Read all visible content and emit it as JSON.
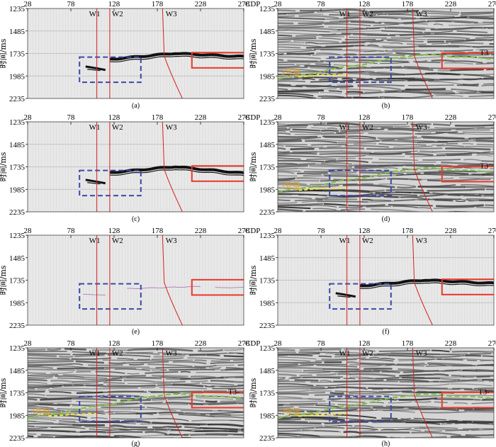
{
  "figure": {
    "x_axis_label": "CDP",
    "y_axis_label": "时间/ms",
    "x_ticks": [
      "28",
      "78",
      "128",
      "178",
      "228",
      "278"
    ],
    "y_ticks": [
      "1235",
      "1485",
      "1735",
      "1985",
      "2235"
    ],
    "wells": [
      "W1",
      "W2",
      "W3"
    ],
    "horizon_label": "T3",
    "horizon_label_alt": "T3-",
    "layer_label": "3号层",
    "panels": [
      {
        "caption": "(a)",
        "type": "extracted"
      },
      {
        "caption": "(b)",
        "type": "seismic"
      },
      {
        "caption": "(c)",
        "type": "extracted"
      },
      {
        "caption": "(d)",
        "type": "seismic"
      },
      {
        "caption": "(e)",
        "type": "faint"
      },
      {
        "caption": "(f)",
        "type": "extracted"
      },
      {
        "caption": "(g)",
        "type": "seismic"
      },
      {
        "caption": "(h)",
        "type": "seismic"
      }
    ]
  },
  "colors": {
    "well_line": "#d42020",
    "red_box": "#e8392a",
    "blue_box": "#3b4aa8",
    "horizon": "#7fc241",
    "layer_text": "#e0a020",
    "grid": "#b9b9b9",
    "panel_bg": "#e8e8e8"
  }
}
